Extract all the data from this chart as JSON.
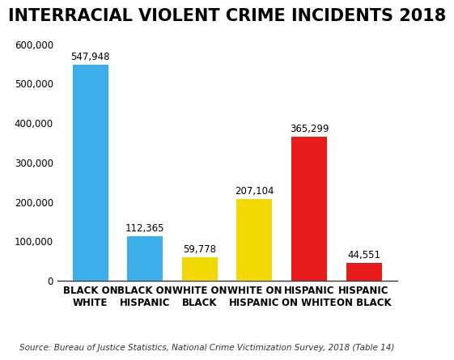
{
  "title": "INTERRACIAL VIOLENT CRIME INCIDENTS 2018",
  "categories": [
    "BLACK ON\nWHITE",
    "BLACK ON\nHISPANIC",
    "WHITE ON\nBLACK",
    "WHITE ON\nHISPANIC",
    "HISPANIC\nON WHITE",
    "HISPANIC\nON BLACK"
  ],
  "values": [
    547948,
    112365,
    59778,
    207104,
    365299,
    44551
  ],
  "bar_colors": [
    "#3daee9",
    "#3daee9",
    "#f0d800",
    "#f0d800",
    "#e81c1c",
    "#e81c1c"
  ],
  "labels": [
    "547,948",
    "112,365",
    "59,778",
    "207,104",
    "365,299",
    "44,551"
  ],
  "ylim": [
    0,
    630000
  ],
  "yticks": [
    0,
    100000,
    200000,
    300000,
    400000,
    500000,
    600000
  ],
  "ytick_labels": [
    "0",
    "100,000",
    "200,000",
    "300,000",
    "400,000",
    "500,000",
    "600,000"
  ],
  "source_text": "Source: Bureau of Justice Statistics, National Crime Victimization Survey, 2018 (Table 14)",
  "background_color": "#ffffff",
  "title_fontsize": 15,
  "label_fontsize": 8.5,
  "tick_fontsize": 8.5,
  "source_fontsize": 7.5
}
